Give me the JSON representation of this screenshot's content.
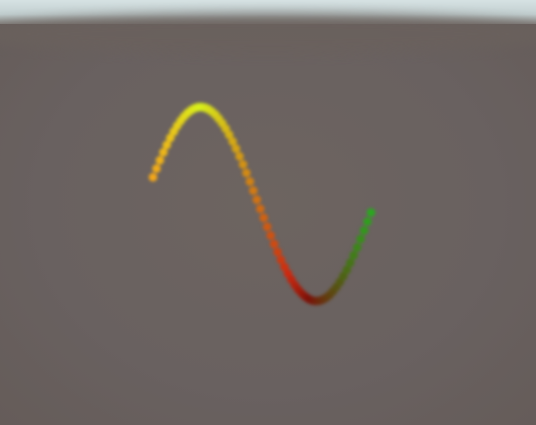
{
  "scene": {
    "background_color": "#6a615d",
    "sky_color": "#cfdcdd"
  },
  "curve": {
    "shape": "sine",
    "cycles": 1,
    "point_count": 64,
    "color_stops": [
      "#f2a61a",
      "#d8f21a",
      "#cc2a10",
      "#7a1008",
      "#2aa81e"
    ],
    "marker": "sphere"
  }
}
